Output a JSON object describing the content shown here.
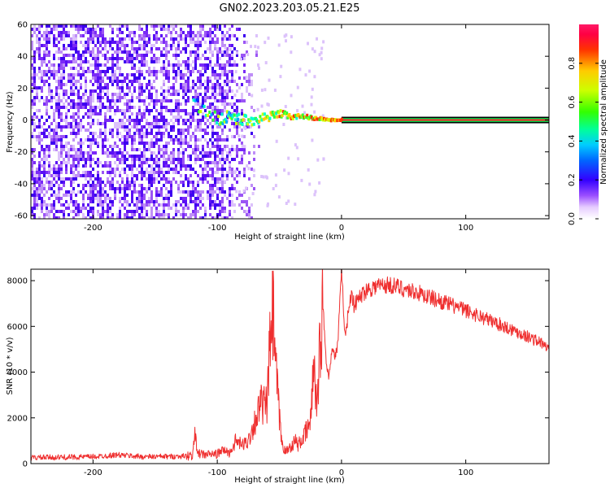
{
  "title": "GN02.2023.203.05.21.E25",
  "colors": {
    "snr_line": "#ef2f2f",
    "axes": "#000000"
  },
  "chart_data": [
    {
      "type": "heatmap",
      "xlabel": "Height of straight line (km)",
      "ylabel": "Frequency (Hz)",
      "xlim": [
        -250,
        167
      ],
      "ylim": [
        -62,
        60
      ],
      "xticks": [
        -200,
        -100,
        0,
        100
      ],
      "xtick_labels": [
        "-200",
        "-100",
        "0",
        "100"
      ],
      "yticks": [
        -60,
        -40,
        -20,
        0,
        20,
        40,
        60
      ],
      "ytick_labels": [
        "-60",
        "-40",
        "-20",
        "0",
        "20",
        "40",
        "60"
      ],
      "colorbar": {
        "label": "Normalized spectral amplitude",
        "range": [
          0,
          1
        ],
        "ticks": [
          0.0,
          0.2,
          0.4,
          0.6,
          0.8
        ],
        "tick_labels": [
          "0.0",
          "0.2",
          "0.4",
          "0.6",
          "0.8"
        ]
      },
      "noise_region_x": [
        -250,
        -80
      ],
      "carrier_line": {
        "x_start": 0,
        "x_end": 167,
        "frequency": 0,
        "amplitude": 1.0
      },
      "carrier_trace": [
        {
          "x": -120,
          "y": 12
        },
        {
          "x": -100,
          "y": 0
        },
        {
          "x": -90,
          "y": 2
        },
        {
          "x": -80,
          "y": 0
        },
        {
          "x": -70,
          "y": 0
        },
        {
          "x": -60,
          "y": 2
        },
        {
          "x": -50,
          "y": 4
        },
        {
          "x": -40,
          "y": 2
        },
        {
          "x": -30,
          "y": 2
        },
        {
          "x": -20,
          "y": 1
        },
        {
          "x": -10,
          "y": 0
        },
        {
          "x": 0,
          "y": 0
        }
      ]
    },
    {
      "type": "line",
      "xlabel": "Height of straight line (km)",
      "ylabel": "SNR (10 * v/v)",
      "xlim": [
        -250,
        167
      ],
      "ylim": [
        0,
        8500
      ],
      "xticks": [
        -200,
        -100,
        0,
        100
      ],
      "xtick_labels": [
        "-200",
        "-100",
        "0",
        "100"
      ],
      "yticks": [
        0,
        2000,
        4000,
        6000,
        8000
      ],
      "ytick_labels": [
        "0",
        "2000",
        "4000",
        "6000",
        "8000"
      ],
      "series": [
        {
          "x": [
            -250,
            -220,
            -200,
            -180,
            -160,
            -140,
            -130,
            -120,
            -118,
            -115,
            -110,
            -100,
            -95,
            -90,
            -85,
            -80,
            -75,
            -70,
            -65,
            -60,
            -57,
            -55,
            -53,
            -50,
            -48,
            -45,
            -42,
            -40,
            -37,
            -35,
            -30,
            -25,
            -22,
            -20,
            -18,
            -15,
            -12,
            -10,
            -8,
            -5,
            -3,
            0,
            3,
            5,
            8,
            10,
            15,
            20,
            30,
            40,
            50,
            60,
            80,
            100,
            120,
            140,
            160,
            167
          ],
          "y": [
            260,
            280,
            300,
            380,
            300,
            310,
            320,
            350,
            1200,
            420,
            400,
            420,
            600,
            450,
            1000,
            800,
            1000,
            1800,
            2600,
            2500,
            5800,
            6500,
            4200,
            2000,
            900,
            500,
            700,
            800,
            1000,
            800,
            1200,
            1800,
            4800,
            2400,
            4500,
            6900,
            4300,
            3800,
            5000,
            4700,
            5200,
            8400,
            5500,
            6400,
            7600,
            6900,
            7300,
            7600,
            7800,
            7800,
            7650,
            7500,
            7100,
            6700,
            6250,
            5800,
            5300,
            5000
          ]
        }
      ]
    }
  ]
}
